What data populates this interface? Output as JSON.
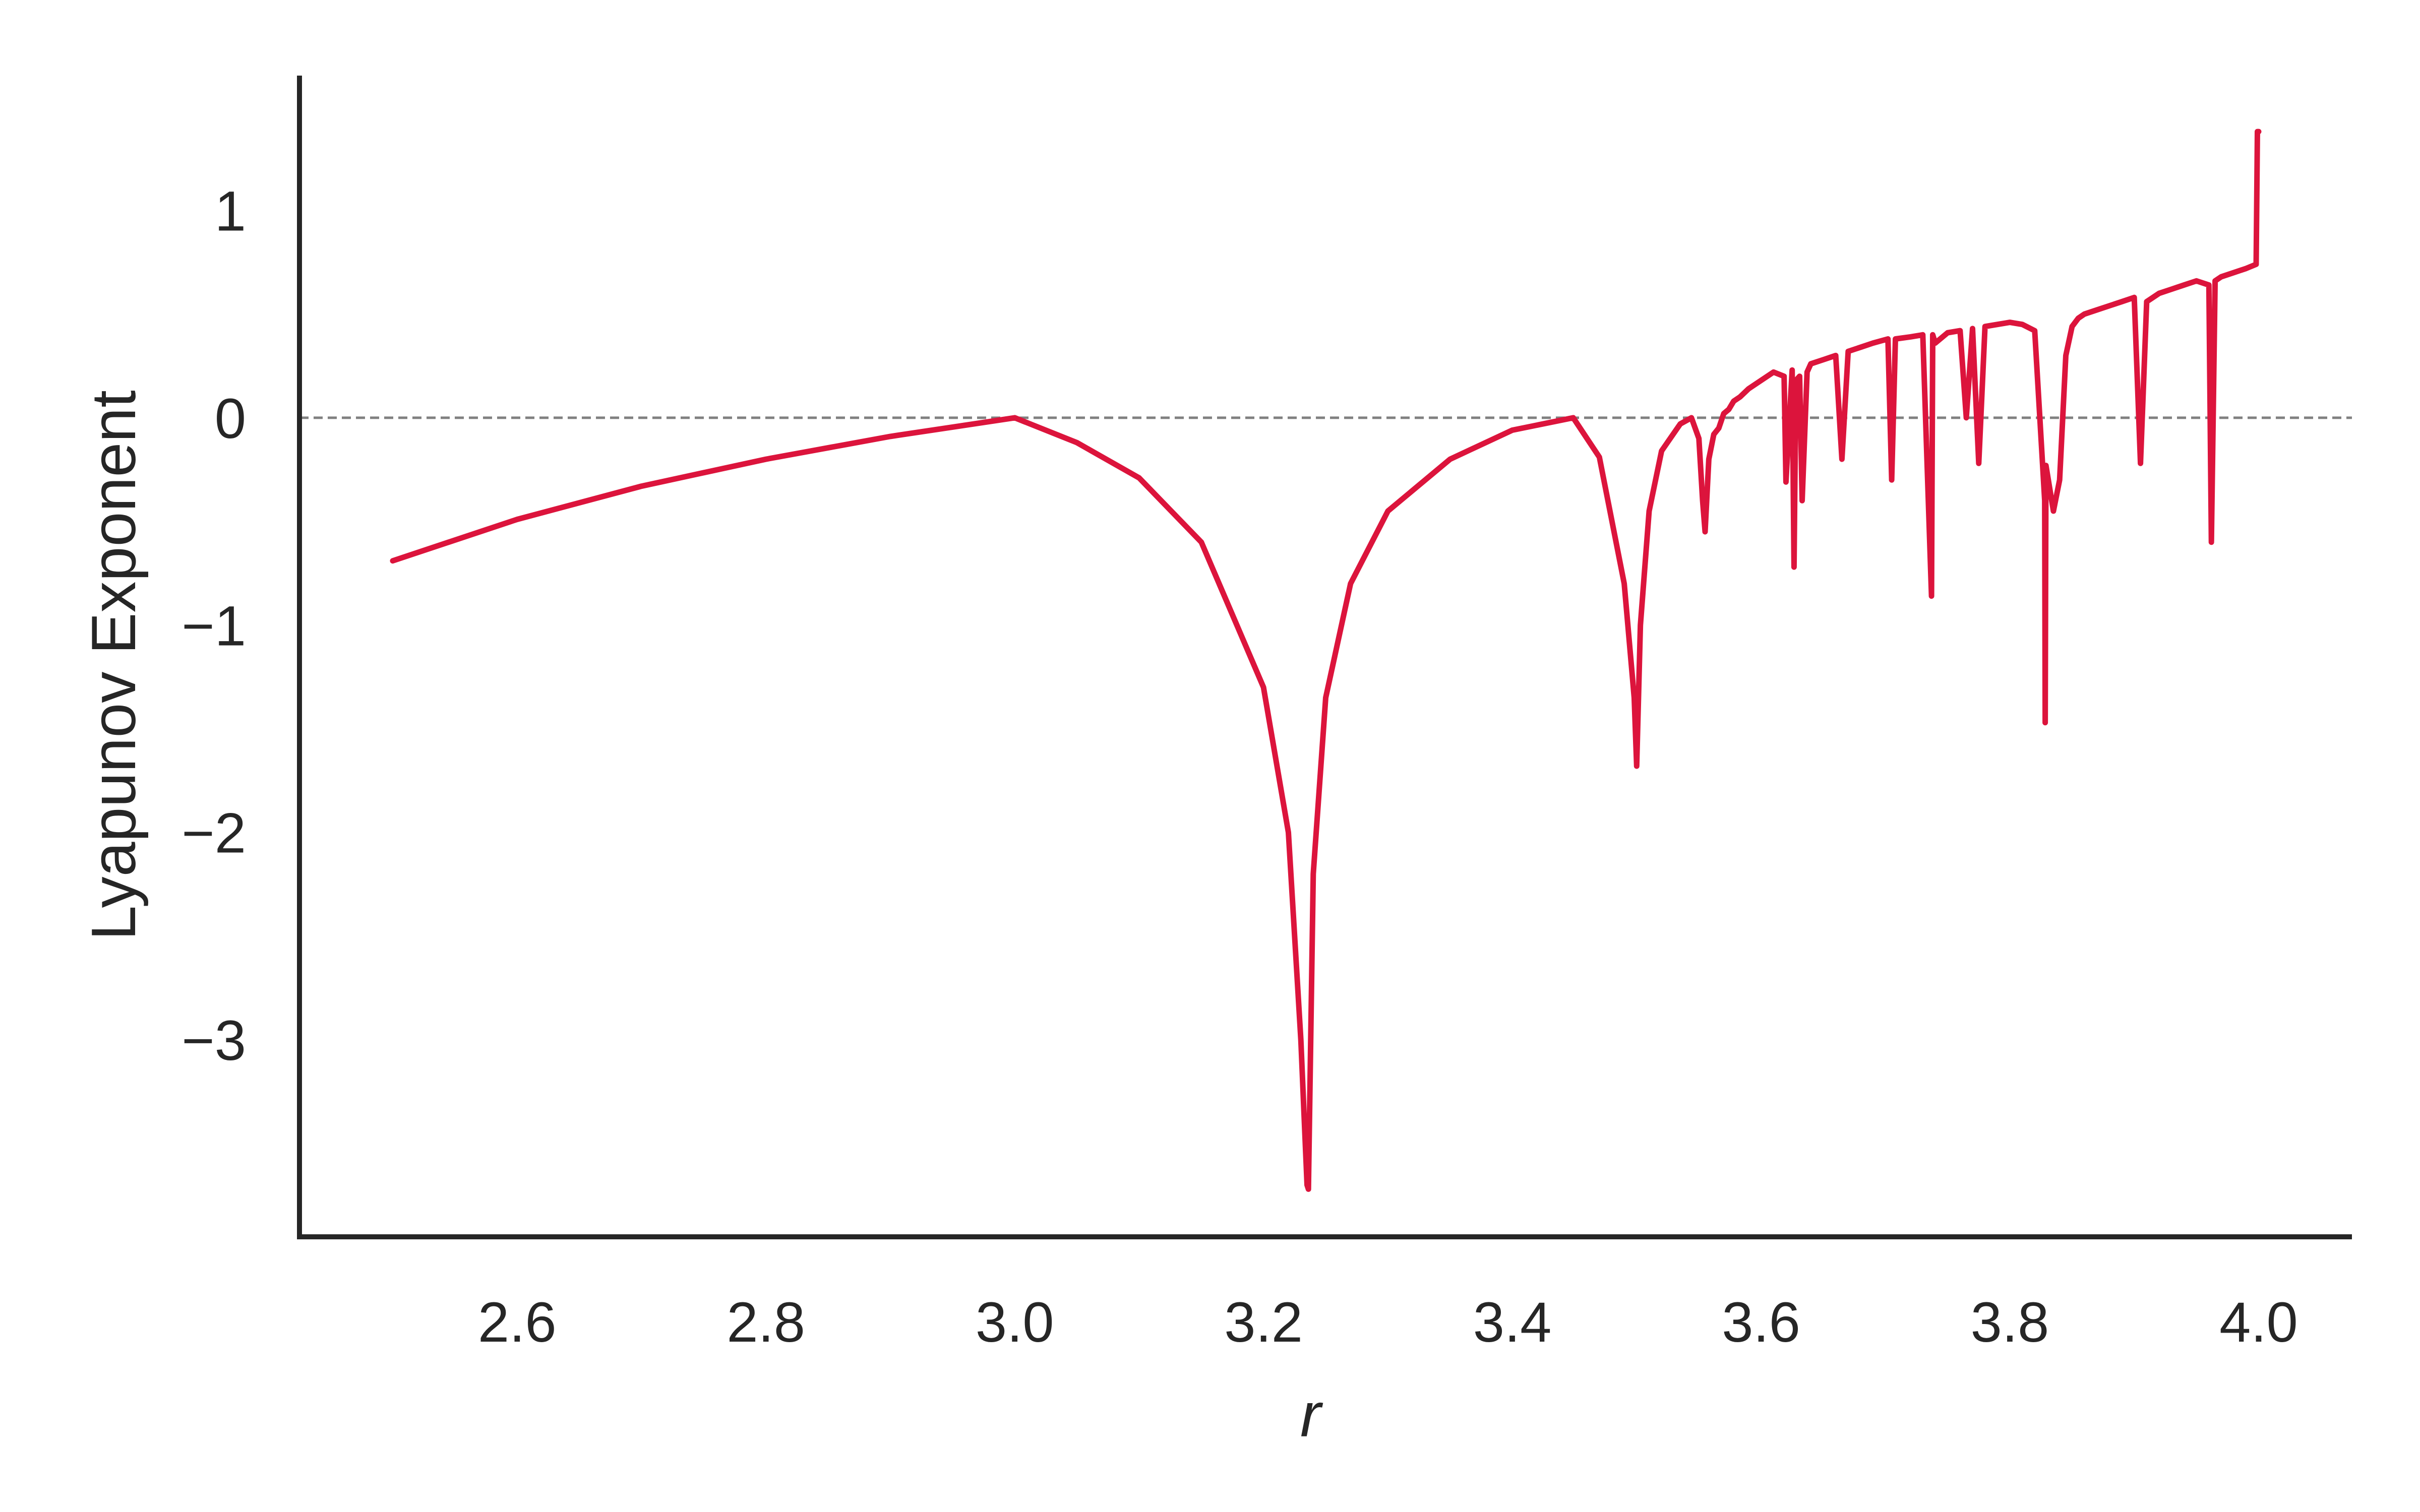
{
  "chart_data": {
    "type": "line",
    "title": "",
    "xlabel": "r",
    "ylabel": "Lyapunov Exponent",
    "xlim": [
      2.425,
      4.075
    ],
    "ylim": [
      -3.95,
      1.65
    ],
    "x_ticks": [
      2.6,
      2.8,
      3.0,
      3.2,
      3.4,
      3.6,
      3.8,
      4.0
    ],
    "x_tick_labels": [
      "2.6",
      "2.8",
      "3.0",
      "3.2",
      "3.4",
      "3.6",
      "3.8",
      "4.0"
    ],
    "y_ticks": [
      1,
      0,
      -1,
      -2,
      -3
    ],
    "y_tick_labels": [
      "1",
      "0",
      "−1",
      "−2",
      "−3"
    ],
    "grid": false,
    "reference_line": {
      "y": 0,
      "style": "dashed",
      "color": "#808080"
    },
    "series": [
      {
        "color": "#dc143c",
        "x": [
          2.5,
          2.6,
          2.7,
          2.8,
          2.9,
          3.0,
          3.05,
          3.1,
          3.15,
          3.2,
          3.22,
          3.23,
          3.235,
          3.2361,
          3.24,
          3.25,
          3.27,
          3.3,
          3.35,
          3.4,
          3.449,
          3.47,
          3.49,
          3.498,
          3.5,
          3.503,
          3.51,
          3.52,
          3.535,
          3.544,
          3.55,
          3.553,
          3.555,
          3.558,
          3.562,
          3.566,
          3.57,
          3.574,
          3.578,
          3.583,
          3.59,
          3.6,
          3.61,
          3.6185,
          3.62,
          3.625,
          3.6265,
          3.628,
          3.631,
          3.633,
          3.637,
          3.64,
          3.65,
          3.66,
          3.665,
          3.67,
          3.68,
          3.69,
          3.702,
          3.705,
          3.708,
          3.72,
          3.73,
          3.737,
          3.738,
          3.74,
          3.75,
          3.76,
          3.765,
          3.77,
          3.775,
          3.78,
          3.79,
          3.8,
          3.81,
          3.82,
          3.828,
          3.8284,
          3.829,
          3.835,
          3.84,
          3.845,
          3.85,
          3.855,
          3.86,
          3.87,
          3.88,
          3.89,
          3.9,
          3.905,
          3.91,
          3.92,
          3.93,
          3.94,
          3.95,
          3.96,
          3.962,
          3.965,
          3.97,
          3.98,
          3.99,
          3.998,
          3.999,
          4.0,
          4.0
        ],
        "values": [
          -0.69,
          -0.49,
          -0.33,
          -0.2,
          -0.09,
          0.0,
          -0.12,
          -0.29,
          -0.6,
          -1.3,
          -2.0,
          -3.0,
          -3.7,
          -3.72,
          -2.2,
          -1.35,
          -0.8,
          -0.45,
          -0.2,
          -0.06,
          0.0,
          -0.19,
          -0.8,
          -1.35,
          -1.68,
          -1.0,
          -0.45,
          -0.16,
          -0.03,
          0.0,
          -0.1,
          -0.4,
          -0.55,
          -0.2,
          -0.08,
          -0.05,
          0.02,
          0.04,
          0.08,
          0.1,
          0.14,
          0.18,
          0.22,
          0.2,
          -0.31,
          0.23,
          -0.72,
          0.18,
          0.2,
          -0.4,
          0.22,
          0.26,
          0.28,
          0.3,
          -0.2,
          0.32,
          0.34,
          0.36,
          0.38,
          -0.3,
          0.38,
          0.39,
          0.4,
          -0.86,
          0.4,
          0.36,
          0.41,
          0.42,
          0.0,
          0.43,
          -0.22,
          0.44,
          0.45,
          0.46,
          0.45,
          0.42,
          -0.4,
          -1.47,
          -0.23,
          -0.45,
          -0.3,
          0.3,
          0.44,
          0.48,
          0.5,
          0.52,
          0.54,
          0.56,
          0.58,
          -0.22,
          0.56,
          0.6,
          0.62,
          0.64,
          0.66,
          0.64,
          -0.6,
          0.66,
          0.68,
          0.7,
          0.72,
          0.74,
          1.38,
          1.38,
          1.38
        ]
      }
    ]
  }
}
